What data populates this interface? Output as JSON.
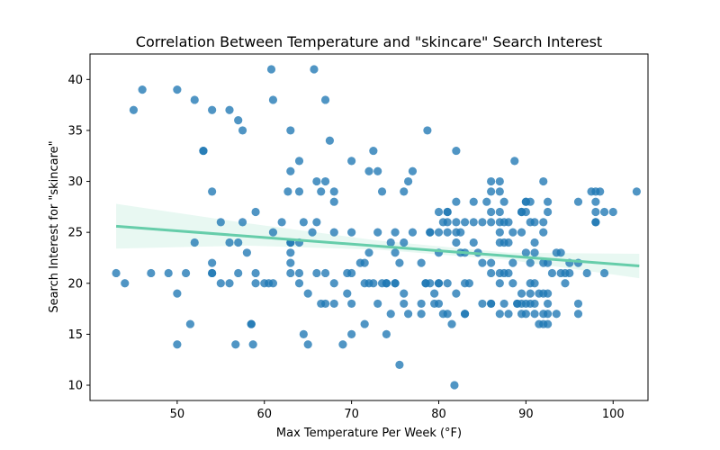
{
  "chart_data": {
    "type": "scatter",
    "title": "Correlation Between Temperature and \"skincare\" Search Interest",
    "xlabel": "Max Temperature Per Week (°F)",
    "ylabel": "Search Interest for \"skincare\"",
    "xlim": [
      40,
      104
    ],
    "ylim": [
      8.5,
      42.5
    ],
    "xticks": [
      50,
      60,
      70,
      80,
      90,
      100
    ],
    "yticks": [
      10,
      15,
      20,
      25,
      30,
      35,
      40
    ],
    "grid": false,
    "legend": "none",
    "point_color": "#1f77b4",
    "regression_color": "#66cdaa",
    "regression_line": {
      "x": [
        43,
        103
      ],
      "y": [
        25.6,
        21.7
      ]
    },
    "confidence_band": {
      "x": [
        43,
        58,
        73,
        88,
        103
      ],
      "lower": [
        23.4,
        23.7,
        23.3,
        22.3,
        20.5
      ],
      "upper": [
        27.8,
        25.9,
        24.2,
        23.0,
        22.9
      ]
    },
    "points": [
      [
        43,
        21
      ],
      [
        44,
        20
      ],
      [
        45,
        37
      ],
      [
        46,
        39
      ],
      [
        47,
        21
      ],
      [
        49,
        21
      ],
      [
        50,
        39
      ],
      [
        50,
        19
      ],
      [
        50,
        14
      ],
      [
        51,
        21
      ],
      [
        51.5,
        16
      ],
      [
        52,
        24
      ],
      [
        52,
        38
      ],
      [
        53,
        33
      ],
      [
        53,
        33
      ],
      [
        54,
        29
      ],
      [
        54,
        37
      ],
      [
        54,
        22
      ],
      [
        54,
        21
      ],
      [
        54,
        21
      ],
      [
        55,
        26
      ],
      [
        55,
        20
      ],
      [
        56,
        37
      ],
      [
        56,
        24
      ],
      [
        56,
        20
      ],
      [
        56.7,
        14
      ],
      [
        57,
        36
      ],
      [
        57,
        24
      ],
      [
        57,
        21
      ],
      [
        57.5,
        35
      ],
      [
        57.5,
        26
      ],
      [
        58,
        23
      ],
      [
        58.5,
        16
      ],
      [
        58.5,
        16
      ],
      [
        58.7,
        14
      ],
      [
        59,
        27
      ],
      [
        59,
        21
      ],
      [
        59,
        20
      ],
      [
        60,
        20
      ],
      [
        60.5,
        20
      ],
      [
        60.8,
        41
      ],
      [
        61,
        38
      ],
      [
        61,
        25
      ],
      [
        61,
        20
      ],
      [
        62,
        26
      ],
      [
        62.7,
        29
      ],
      [
        63,
        35
      ],
      [
        63,
        31
      ],
      [
        63,
        24
      ],
      [
        63,
        24
      ],
      [
        63,
        23
      ],
      [
        63,
        22
      ],
      [
        63,
        21
      ],
      [
        64,
        32
      ],
      [
        64,
        29
      ],
      [
        64,
        24
      ],
      [
        64,
        21
      ],
      [
        64,
        20
      ],
      [
        64.5,
        26
      ],
      [
        64.5,
        15
      ],
      [
        65,
        19
      ],
      [
        65,
        14
      ],
      [
        65.5,
        25
      ],
      [
        65.7,
        41
      ],
      [
        66,
        30
      ],
      [
        66,
        26
      ],
      [
        66,
        21
      ],
      [
        66.5,
        29
      ],
      [
        66.5,
        18
      ],
      [
        67,
        38
      ],
      [
        67,
        30
      ],
      [
        67,
        21
      ],
      [
        67,
        18
      ],
      [
        67.5,
        34
      ],
      [
        68,
        29
      ],
      [
        68,
        28
      ],
      [
        68,
        25
      ],
      [
        68,
        20
      ],
      [
        68,
        18
      ],
      [
        69,
        14
      ],
      [
        69.5,
        21
      ],
      [
        69.5,
        19
      ],
      [
        70,
        32
      ],
      [
        70,
        25
      ],
      [
        70,
        21
      ],
      [
        70,
        18
      ],
      [
        70,
        15
      ],
      [
        71,
        22
      ],
      [
        71.5,
        22
      ],
      [
        71.5,
        20
      ],
      [
        71.5,
        16
      ],
      [
        72,
        31
      ],
      [
        72,
        23
      ],
      [
        72,
        20
      ],
      [
        72.5,
        33
      ],
      [
        72.5,
        20
      ],
      [
        73,
        31
      ],
      [
        73,
        25
      ],
      [
        73,
        18
      ],
      [
        73.5,
        29
      ],
      [
        73.5,
        20
      ],
      [
        74,
        20
      ],
      [
        74,
        20
      ],
      [
        74,
        15
      ],
      [
        74.5,
        24
      ],
      [
        74.5,
        17
      ],
      [
        75,
        25
      ],
      [
        75,
        23
      ],
      [
        75,
        20
      ],
      [
        75,
        20
      ],
      [
        75.5,
        22
      ],
      [
        75.5,
        12
      ],
      [
        76,
        29
      ],
      [
        76,
        24
      ],
      [
        76,
        19
      ],
      [
        76,
        18
      ],
      [
        76.5,
        30
      ],
      [
        76.5,
        17
      ],
      [
        77,
        31
      ],
      [
        77,
        25
      ],
      [
        78,
        22
      ],
      [
        78,
        18
      ],
      [
        78,
        17
      ],
      [
        78.5,
        20
      ],
      [
        78.5,
        20
      ],
      [
        78.7,
        35
      ],
      [
        79,
        25
      ],
      [
        79,
        25
      ],
      [
        79,
        20
      ],
      [
        79.5,
        19
      ],
      [
        79.5,
        18
      ],
      [
        80,
        27
      ],
      [
        80,
        25
      ],
      [
        80,
        23
      ],
      [
        80,
        20
      ],
      [
        80,
        20
      ],
      [
        80,
        18
      ],
      [
        80.5,
        26
      ],
      [
        80.5,
        17
      ],
      [
        81,
        27
      ],
      [
        81,
        27
      ],
      [
        81,
        26
      ],
      [
        81,
        25
      ],
      [
        81,
        20
      ],
      [
        81,
        17
      ],
      [
        81.5,
        16
      ],
      [
        81.8,
        10
      ],
      [
        82,
        33
      ],
      [
        82,
        28
      ],
      [
        82,
        26
      ],
      [
        82,
        25
      ],
      [
        82,
        24
      ],
      [
        82,
        19
      ],
      [
        82.5,
        25
      ],
      [
        82.5,
        23
      ],
      [
        83,
        26
      ],
      [
        83,
        23
      ],
      [
        83,
        20
      ],
      [
        83,
        17
      ],
      [
        83,
        17
      ],
      [
        83.5,
        20
      ],
      [
        84,
        28
      ],
      [
        84,
        26
      ],
      [
        84,
        24
      ],
      [
        84.5,
        23
      ],
      [
        85,
        26
      ],
      [
        85,
        22
      ],
      [
        85,
        18
      ],
      [
        85.5,
        28
      ],
      [
        86,
        30
      ],
      [
        86,
        29
      ],
      [
        86,
        27
      ],
      [
        86,
        26
      ],
      [
        86,
        22
      ],
      [
        86,
        21
      ],
      [
        86,
        18
      ],
      [
        86,
        18
      ],
      [
        87,
        30
      ],
      [
        87,
        29
      ],
      [
        87,
        27
      ],
      [
        87,
        26
      ],
      [
        87,
        25
      ],
      [
        87,
        24
      ],
      [
        87,
        21
      ],
      [
        87,
        20
      ],
      [
        87,
        17
      ],
      [
        87.5,
        28
      ],
      [
        87.5,
        26
      ],
      [
        87.5,
        24
      ],
      [
        87.5,
        21
      ],
      [
        87.5,
        18
      ],
      [
        88,
        26
      ],
      [
        88,
        24
      ],
      [
        88,
        21
      ],
      [
        88,
        17
      ],
      [
        88.5,
        25
      ],
      [
        88.5,
        22
      ],
      [
        88.5,
        20
      ],
      [
        88.7,
        32
      ],
      [
        89,
        18
      ],
      [
        89,
        18
      ],
      [
        89.5,
        27
      ],
      [
        89.5,
        27
      ],
      [
        89.5,
        25
      ],
      [
        89.5,
        19
      ],
      [
        89.5,
        18
      ],
      [
        89.5,
        17
      ],
      [
        90,
        28
      ],
      [
        90,
        28
      ],
      [
        90,
        27
      ],
      [
        90,
        23
      ],
      [
        90,
        18
      ],
      [
        90,
        17
      ],
      [
        90.5,
        28
      ],
      [
        90.5,
        26
      ],
      [
        90.5,
        22
      ],
      [
        90.5,
        20
      ],
      [
        90.5,
        19
      ],
      [
        90.5,
        18
      ],
      [
        91,
        26
      ],
      [
        91,
        24
      ],
      [
        91,
        23
      ],
      [
        91,
        20
      ],
      [
        91,
        18
      ],
      [
        91,
        17
      ],
      [
        91.5,
        19
      ],
      [
        91.5,
        16
      ],
      [
        92,
        30
      ],
      [
        92,
        26
      ],
      [
        92,
        25
      ],
      [
        92,
        22
      ],
      [
        92,
        19
      ],
      [
        92,
        17
      ],
      [
        92,
        16
      ],
      [
        92.5,
        28
      ],
      [
        92.5,
        27
      ],
      [
        92.5,
        22
      ],
      [
        92.5,
        19
      ],
      [
        92.5,
        18
      ],
      [
        92.5,
        17
      ],
      [
        92.5,
        16
      ],
      [
        93,
        21
      ],
      [
        93.5,
        23
      ],
      [
        93.5,
        17
      ],
      [
        94,
        23
      ],
      [
        94,
        21
      ],
      [
        94.5,
        21
      ],
      [
        94.5,
        20
      ],
      [
        95,
        22
      ],
      [
        95,
        21
      ],
      [
        96,
        28
      ],
      [
        96,
        22
      ],
      [
        96,
        18
      ],
      [
        96,
        17
      ],
      [
        97,
        21
      ],
      [
        97.5,
        29
      ],
      [
        98,
        29
      ],
      [
        98,
        28
      ],
      [
        98,
        27
      ],
      [
        98,
        26
      ],
      [
        98,
        26
      ],
      [
        98.5,
        29
      ],
      [
        99,
        21
      ],
      [
        99,
        27
      ],
      [
        100,
        27
      ],
      [
        102.7,
        29
      ]
    ]
  }
}
